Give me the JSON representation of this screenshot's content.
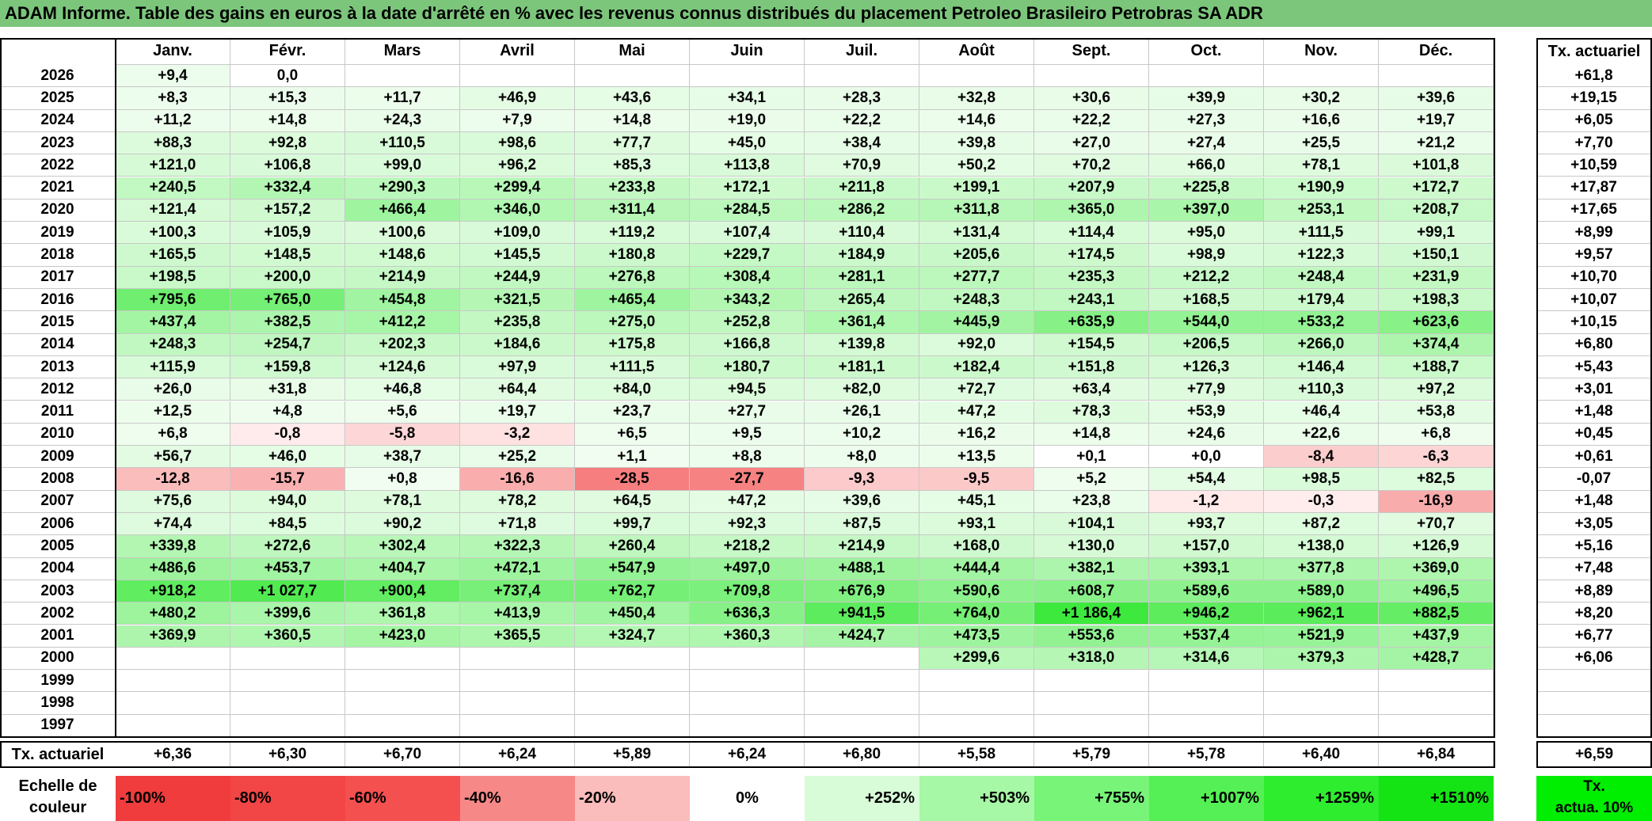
{
  "title": "ADAM Informe. Table des gains en euros à la date d'arrêté en % avec les revenus connus distribués du placement Petroleo Brasileiro Petrobras SA ADR",
  "months": [
    "Janv.",
    "Févr.",
    "Mars",
    "Avril",
    "Mai",
    "Juin",
    "Juil.",
    "Août",
    "Sept.",
    "Oct.",
    "Nov.",
    "Déc."
  ],
  "rate_header": "Tx. actuariel",
  "rows": [
    {
      "year": "2026",
      "values": [
        "+9,4",
        "0,0",
        "",
        "",
        "",
        "",
        "",
        "",
        "",
        "",
        "",
        ""
      ],
      "rate": "+61,8"
    },
    {
      "year": "2025",
      "values": [
        "+8,3",
        "+15,3",
        "+11,7",
        "+46,9",
        "+43,6",
        "+34,1",
        "+28,3",
        "+32,8",
        "+30,6",
        "+39,9",
        "+30,2",
        "+39,6"
      ],
      "rate": "+19,15"
    },
    {
      "year": "2024",
      "values": [
        "+11,2",
        "+14,8",
        "+24,3",
        "+7,9",
        "+14,8",
        "+19,0",
        "+22,2",
        "+14,6",
        "+22,2",
        "+27,3",
        "+16,6",
        "+19,7"
      ],
      "rate": "+6,05"
    },
    {
      "year": "2023",
      "values": [
        "+88,3",
        "+92,8",
        "+110,5",
        "+98,6",
        "+77,7",
        "+45,0",
        "+38,4",
        "+39,8",
        "+27,0",
        "+27,4",
        "+25,5",
        "+21,2"
      ],
      "rate": "+7,70"
    },
    {
      "year": "2022",
      "values": [
        "+121,0",
        "+106,8",
        "+99,0",
        "+96,2",
        "+85,3",
        "+113,8",
        "+70,9",
        "+50,2",
        "+70,2",
        "+66,0",
        "+78,1",
        "+101,8"
      ],
      "rate": "+10,59"
    },
    {
      "year": "2021",
      "values": [
        "+240,5",
        "+332,4",
        "+290,3",
        "+299,4",
        "+233,8",
        "+172,1",
        "+211,8",
        "+199,1",
        "+207,9",
        "+225,8",
        "+190,9",
        "+172,7"
      ],
      "rate": "+17,87"
    },
    {
      "year": "2020",
      "values": [
        "+121,4",
        "+157,2",
        "+466,4",
        "+346,0",
        "+311,4",
        "+284,5",
        "+286,2",
        "+311,8",
        "+365,0",
        "+397,0",
        "+253,1",
        "+208,7"
      ],
      "rate": "+17,65"
    },
    {
      "year": "2019",
      "values": [
        "+100,3",
        "+105,9",
        "+100,6",
        "+109,0",
        "+119,2",
        "+107,4",
        "+110,4",
        "+131,4",
        "+114,4",
        "+95,0",
        "+111,5",
        "+99,1"
      ],
      "rate": "+8,99"
    },
    {
      "year": "2018",
      "values": [
        "+165,5",
        "+148,5",
        "+148,6",
        "+145,5",
        "+180,8",
        "+229,7",
        "+184,9",
        "+205,6",
        "+174,5",
        "+98,9",
        "+122,3",
        "+150,1"
      ],
      "rate": "+9,57"
    },
    {
      "year": "2017",
      "values": [
        "+198,5",
        "+200,0",
        "+214,9",
        "+244,9",
        "+276,8",
        "+308,4",
        "+281,1",
        "+277,7",
        "+235,3",
        "+212,2",
        "+248,4",
        "+231,9"
      ],
      "rate": "+10,70"
    },
    {
      "year": "2016",
      "values": [
        "+795,6",
        "+765,0",
        "+454,8",
        "+321,5",
        "+465,4",
        "+343,2",
        "+265,4",
        "+248,3",
        "+243,1",
        "+168,5",
        "+179,4",
        "+198,3"
      ],
      "rate": "+10,07"
    },
    {
      "year": "2015",
      "values": [
        "+437,4",
        "+382,5",
        "+412,2",
        "+235,8",
        "+275,0",
        "+252,8",
        "+361,4",
        "+445,9",
        "+635,9",
        "+544,0",
        "+533,2",
        "+623,6"
      ],
      "rate": "+10,15"
    },
    {
      "year": "2014",
      "values": [
        "+248,3",
        "+254,7",
        "+202,3",
        "+184,6",
        "+175,8",
        "+166,8",
        "+139,8",
        "+92,0",
        "+154,5",
        "+206,5",
        "+266,0",
        "+374,4"
      ],
      "rate": "+6,80"
    },
    {
      "year": "2013",
      "values": [
        "+115,9",
        "+159,8",
        "+124,6",
        "+97,9",
        "+111,5",
        "+180,7",
        "+181,1",
        "+182,4",
        "+151,8",
        "+126,3",
        "+146,4",
        "+188,7"
      ],
      "rate": "+5,43"
    },
    {
      "year": "2012",
      "values": [
        "+26,0",
        "+31,8",
        "+46,8",
        "+64,4",
        "+84,0",
        "+94,5",
        "+82,0",
        "+72,7",
        "+63,4",
        "+77,9",
        "+110,3",
        "+97,2"
      ],
      "rate": "+3,01"
    },
    {
      "year": "2011",
      "values": [
        "+12,5",
        "+4,8",
        "+5,6",
        "+19,7",
        "+23,7",
        "+27,7",
        "+26,1",
        "+47,2",
        "+78,3",
        "+53,9",
        "+46,4",
        "+53,8"
      ],
      "rate": "+1,48"
    },
    {
      "year": "2010",
      "values": [
        "+6,8",
        "-0,8",
        "-5,8",
        "-3,2",
        "+6,5",
        "+9,5",
        "+10,2",
        "+16,2",
        "+14,8",
        "+24,6",
        "+22,6",
        "+6,8"
      ],
      "rate": "+0,45"
    },
    {
      "year": "2009",
      "values": [
        "+56,7",
        "+46,0",
        "+38,7",
        "+25,2",
        "+1,1",
        "+8,8",
        "+8,0",
        "+13,5",
        "+0,1",
        "+0,0",
        "-8,4",
        "-6,3"
      ],
      "rate": "+0,61"
    },
    {
      "year": "2008",
      "values": [
        "-12,8",
        "-15,7",
        "+0,8",
        "-16,6",
        "-28,5",
        "-27,7",
        "-9,3",
        "-9,5",
        "+5,2",
        "+54,4",
        "+98,5",
        "+82,5"
      ],
      "rate": "-0,07"
    },
    {
      "year": "2007",
      "values": [
        "+75,6",
        "+94,0",
        "+78,1",
        "+78,2",
        "+64,5",
        "+47,2",
        "+39,6",
        "+45,1",
        "+23,8",
        "-1,2",
        "-0,3",
        "-16,9"
      ],
      "rate": "+1,48"
    },
    {
      "year": "2006",
      "values": [
        "+74,4",
        "+84,5",
        "+90,2",
        "+71,8",
        "+99,7",
        "+92,3",
        "+87,5",
        "+93,1",
        "+104,1",
        "+93,7",
        "+87,2",
        "+70,7"
      ],
      "rate": "+3,05"
    },
    {
      "year": "2005",
      "values": [
        "+339,8",
        "+272,6",
        "+302,4",
        "+322,3",
        "+260,4",
        "+218,2",
        "+214,9",
        "+168,0",
        "+130,0",
        "+157,0",
        "+138,0",
        "+126,9"
      ],
      "rate": "+5,16"
    },
    {
      "year": "2004",
      "values": [
        "+486,6",
        "+453,7",
        "+404,7",
        "+472,1",
        "+547,9",
        "+497,0",
        "+488,1",
        "+444,4",
        "+382,1",
        "+393,1",
        "+377,8",
        "+369,0"
      ],
      "rate": "+7,48"
    },
    {
      "year": "2003",
      "values": [
        "+918,2",
        "+1 027,7",
        "+900,4",
        "+737,4",
        "+762,7",
        "+709,8",
        "+676,9",
        "+590,6",
        "+608,7",
        "+589,6",
        "+589,0",
        "+496,5"
      ],
      "rate": "+8,89"
    },
    {
      "year": "2002",
      "values": [
        "+480,2",
        "+399,6",
        "+361,8",
        "+413,9",
        "+450,4",
        "+636,3",
        "+941,5",
        "+764,0",
        "+1 186,4",
        "+946,2",
        "+962,1",
        "+882,5"
      ],
      "rate": "+8,20"
    },
    {
      "year": "2001",
      "values": [
        "+369,9",
        "+360,5",
        "+423,0",
        "+365,5",
        "+324,7",
        "+360,3",
        "+424,7",
        "+473,5",
        "+553,6",
        "+537,4",
        "+521,9",
        "+437,9"
      ],
      "rate": "+6,77"
    },
    {
      "year": "2000",
      "values": [
        "",
        "",
        "",
        "",
        "",
        "",
        "",
        "+299,6",
        "+318,0",
        "+314,6",
        "+379,3",
        "+428,7"
      ],
      "rate": "+6,06"
    },
    {
      "year": "1999",
      "values": [
        "",
        "",
        "",
        "",
        "",
        "",
        "",
        "",
        "",
        "",
        "",
        ""
      ],
      "rate": ""
    },
    {
      "year": "1998",
      "values": [
        "",
        "",
        "",
        "",
        "",
        "",
        "",
        "",
        "",
        "",
        "",
        ""
      ],
      "rate": ""
    },
    {
      "year": "1997",
      "values": [
        "",
        "",
        "",
        "",
        "",
        "",
        "",
        "",
        "",
        "",
        "",
        ""
      ],
      "rate": ""
    }
  ],
  "footer": {
    "label": "Tx. actuariel",
    "values": [
      "+6,36",
      "+6,30",
      "+6,70",
      "+6,24",
      "+5,89",
      "+6,24",
      "+6,80",
      "+5,58",
      "+5,79",
      "+5,78",
      "+6,40",
      "+6,84"
    ],
    "total": "+6,59"
  },
  "legend": {
    "label_line1": "Echelle de",
    "label_line2": "couleur",
    "items": [
      {
        "label": "-100%",
        "color": "#f03c3c"
      },
      {
        "label": "-80%",
        "color": "#f24545"
      },
      {
        "label": "-60%",
        "color": "#f45050"
      },
      {
        "label": "-40%",
        "color": "#f78888"
      },
      {
        "label": "-20%",
        "color": "#fbbcbc"
      },
      {
        "label": "0%",
        "color": "#ffffff"
      },
      {
        "label": "+252%",
        "color": "#d8fbd8"
      },
      {
        "label": "+503%",
        "color": "#a6f7a6"
      },
      {
        "label": "+755%",
        "color": "#78f478"
      },
      {
        "label": "+1007%",
        "color": "#55f055"
      },
      {
        "label": "+1259%",
        "color": "#2eec2e"
      },
      {
        "label": "+1510%",
        "color": "#14e414"
      }
    ],
    "actua_line1": "Tx.",
    "actua_line2": "actua. 10%",
    "actua_color": "#00ee00"
  },
  "colors": {
    "title_bg": "#7cc67c",
    "scale_negative_max": "#f03c3c",
    "scale_positive_max": "#14e414"
  }
}
